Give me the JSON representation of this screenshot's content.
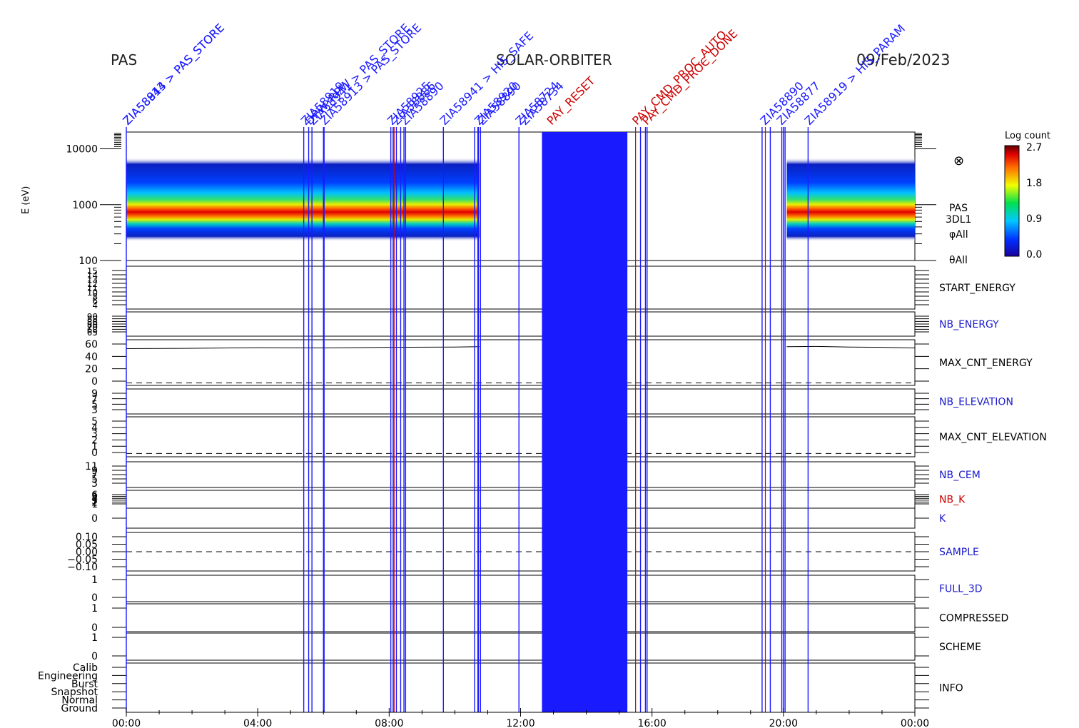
{
  "header": {
    "instrument": "PAS",
    "mission": "SOLAR-ORBITER",
    "date": "09/Feb/2023"
  },
  "colors": {
    "command_line": "#1a1aff",
    "red_line": "#cc0000",
    "text_black": "#000000",
    "text_blue": "#1a1acc",
    "text_red": "#cc0000"
  },
  "time_axis": {
    "ticks": [
      "00:00",
      "04:00",
      "08:00",
      "12:00",
      "16:00",
      "20:00",
      "00:00"
    ],
    "range_hours": [
      0,
      24
    ]
  },
  "annotations": [
    {
      "label": "ZIA58844 > PAS_STORE",
      "t": 0.0
    },
    {
      "label": "ZIA58913 > PAS_STORE",
      "t": 0.0
    },
    {
      "label": "ZIA58919",
      "t": 5.42
    },
    {
      "label": "DPW_RPW",
      "t": 5.55
    },
    {
      "label": "ZIA58941 > PAS_STORE",
      "t": 5.65
    },
    {
      "label": "ZIA58913 > PAS_STORE",
      "t": 6.0
    },
    {
      "label": "ZIA58925",
      "t": 8.05
    },
    {
      "label": "ZIA58886",
      "t": 8.2
    },
    {
      "label": "ZIA58890",
      "t": 8.45
    },
    {
      "label": "ZIA58941 > HIS_SAFE",
      "t": 9.65
    },
    {
      "label": "ZIA58920",
      "t": 10.7
    },
    {
      "label": "ZIA58890",
      "t": 10.8
    },
    {
      "label": "ZIA58724",
      "t": 11.95
    },
    {
      "label": "ZIA58734",
      "t": 12.1
    },
    {
      "label": "PAY_RESET",
      "t": 12.9
    },
    {
      "label": "PAY_CMD_PROC_AUTO",
      "t": 15.5
    },
    {
      "label": "PAY_CMD_PROC_DONE",
      "t": 15.8
    },
    {
      "label": "ZIA58890",
      "t": 19.4
    },
    {
      "label": "ZIA58877",
      "t": 19.9
    },
    {
      "label": "ZIA58919 > HIS_PARAM",
      "t": 20.75
    }
  ],
  "chart_data": [
    {
      "type": "heatmap",
      "name": "PAS 3DL1 energy spectrogram",
      "ylabel": "E (eV)",
      "yscale": "log",
      "yticks": [
        "10000",
        "1000",
        "100"
      ],
      "ylim": [
        100,
        20000
      ],
      "side_labels": [
        "PAS",
        "3DL1",
        "φAll",
        "θAll"
      ],
      "symbol": "⊗",
      "colorbar": {
        "title": "Log count",
        "ticks": [
          "2.7",
          "1.8",
          "0.9",
          "0.0"
        ],
        "range": [
          0,
          2.7
        ]
      },
      "data_intervals_hours": [
        [
          0,
          10.75
        ],
        [
          20.1,
          24
        ]
      ],
      "peak_energy_eV": 800,
      "band_eV": [
        220,
        7000
      ]
    },
    {
      "type": "line",
      "label": "START_ENERGY",
      "label_color": "black",
      "yticks": [
        "15",
        "14",
        "13",
        "12",
        "11",
        "10",
        "8",
        "6",
        "4"
      ],
      "segments": []
    },
    {
      "type": "line",
      "label": "NB_ENERGY",
      "label_color": "blue",
      "yticks": [
        "90",
        "88",
        "86",
        "80",
        "70",
        "68",
        "65"
      ],
      "segments": []
    },
    {
      "type": "line",
      "label": "MAX_CNT_ENERGY",
      "label_color": "black",
      "yticks": [
        "60",
        "40",
        "20",
        "0"
      ],
      "ylim": [
        -4,
        68
      ],
      "segments": [
        {
          "x": [
            0,
            2,
            4,
            6,
            8,
            10,
            10.75
          ],
          "y": [
            54,
            54.5,
            55.5,
            55,
            56,
            56.5,
            57
          ]
        },
        {
          "x": [
            20.1,
            21,
            22,
            23,
            24
          ],
          "y": [
            57,
            57.5,
            56.5,
            56,
            55
          ]
        }
      ]
    },
    {
      "type": "line",
      "label": "NB_ELEVATION",
      "label_color": "blue",
      "yticks": [
        "9",
        "7",
        "5",
        "3"
      ],
      "segments": []
    },
    {
      "type": "line",
      "label": "MAX_CNT_ELEVATION",
      "label_color": "black",
      "yticks": [
        "5",
        "4",
        "3",
        "2",
        "1",
        "0"
      ],
      "ylim": [
        -0.5,
        5.5
      ],
      "segments": []
    },
    {
      "type": "line",
      "label": "NB_CEM",
      "label_color": "blue",
      "yticks": [
        "11",
        "9",
        "7",
        "5",
        "3"
      ],
      "segments": []
    },
    {
      "type": "line",
      "label": "NB_K",
      "label_color": "red",
      "yticks": [
        "6",
        "5",
        "4",
        "3",
        "2",
        "1"
      ],
      "segments": []
    },
    {
      "type": "line",
      "label": "K",
      "label_color": "blue",
      "yticks": [
        "0"
      ],
      "segments": []
    },
    {
      "type": "line",
      "label": "SAMPLE",
      "label_color": "blue",
      "yticks": [
        "0.10",
        "0.05",
        "0.00",
        "−0.05",
        "−0.10"
      ],
      "ylim": [
        -0.12,
        0.12
      ],
      "segments": []
    },
    {
      "type": "line",
      "label": "FULL_3D",
      "label_color": "blue",
      "yticks": [
        "1",
        "0"
      ],
      "segments": []
    },
    {
      "type": "line",
      "label": "COMPRESSED",
      "label_color": "black",
      "yticks": [
        "1",
        "0"
      ],
      "segments": []
    },
    {
      "type": "line",
      "label": "SCHEME",
      "label_color": "black",
      "yticks": [
        "1",
        "0"
      ],
      "segments": []
    },
    {
      "type": "line",
      "label": "INFO",
      "label_color": "black",
      "yticks": [
        "Calib",
        "Engineering",
        "Burst",
        "Snapshot",
        "Normal",
        "Ground"
      ],
      "segments": []
    }
  ],
  "command_lines_hours": [
    0.0,
    5.4,
    5.55,
    5.65,
    6.0,
    6.02,
    8.05,
    8.12,
    8.22,
    8.35,
    8.45,
    8.5,
    9.65,
    10.6,
    10.7,
    10.72,
    10.78,
    11.95,
    15.65,
    15.8,
    15.85,
    19.35,
    19.6,
    19.95,
    20.0,
    20.05,
    20.75
  ],
  "red_lines_hours": [
    8.15,
    15.5,
    19.45
  ],
  "blanked_interval_hours": [
    12.65,
    15.25
  ]
}
